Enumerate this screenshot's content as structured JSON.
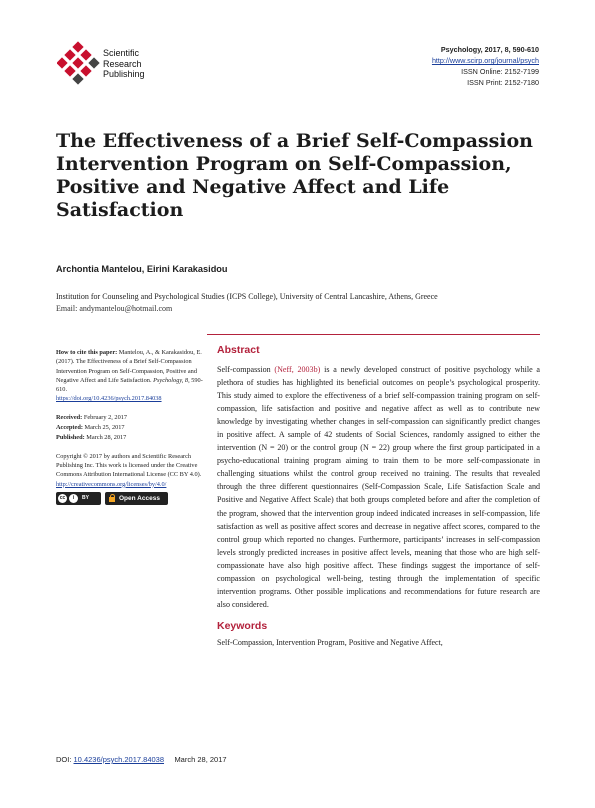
{
  "publisher": {
    "name_lines": [
      "Scientific",
      "Research",
      "Publishing"
    ],
    "brand_color": "#c8102e"
  },
  "journal": {
    "citation": "Psychology, 2017, 8, 590-610",
    "url": "http://www.scirp.org/journal/psych",
    "issn_online": "ISSN Online: 2152-7199",
    "issn_print": "ISSN Print: 2152-7180"
  },
  "article": {
    "title": "The Effectiveness of a Brief Self-Compassion Intervention Program on Self-Compassion, Positive and Negative Affect and Life Satisfaction",
    "authors": "Archontia Mantelou, Eirini Karakasidou",
    "affiliation": "Institution for Counseling and Psychological Studies (ICPS College), University of Central Lancashire, Athens, Greece",
    "email": "Email: andymantelou@hotmail.com"
  },
  "sidebar": {
    "how_to_cite_label": "How to cite this paper:",
    "how_to_cite_text": "Mantelou, A., & Karakasidou, E. (2017). The Effectiveness of a Brief Self-Compassion Intervention Program on Self-Compassion, Positive and Negative Affect and Life Satisfaction.",
    "how_to_cite_journal": "Psychology, 8,",
    "how_to_cite_pages": "590-610.",
    "doi_link": "https://doi.org/10.4236/psych.2017.84038",
    "received_label": "Received:",
    "received_date": "February 2, 2017",
    "accepted_label": "Accepted:",
    "accepted_date": "March 25, 2017",
    "published_label": "Published:",
    "published_date": "March 28, 2017",
    "copyright": "Copyright © 2017 by authors and Scientific Research Publishing Inc. This work is licensed under the Creative Commons Attribution International License (CC BY 4.0).",
    "license_link": "http://creativecommons.org/licenses/by/4.0/",
    "cc_icon_1": "cc",
    "cc_icon_2": "i",
    "cc_badge_label": "BY",
    "open_access_label": "Open Access"
  },
  "abstract": {
    "heading": "Abstract",
    "lead": "Self-compassion",
    "cite": "(Neff, 2003b)",
    "body": "is a newly developed construct of positive psychology while a plethora of studies has highlighted its beneficial outcomes on people’s psychological prosperity. This study aimed to explore the effectiveness of a brief self-compassion training program on self-compassion, life satisfaction and positive and negative affect as well as to contribute new knowledge by investigating whether changes in self-compassion can significantly predict changes in positive affect. A sample of 42 students of Social Sciences, randomly assigned to either the intervention (N = 20) or the control group (N = 22) group where the first group participated in a psycho-educational training program aiming to train them to be more self-compassionate in challenging situations whilst the control group received no training. The results that revealed through the three different questionnaires (Self-Compassion Scale, Life Satisfaction Scale and Positive and Negative Affect Scale) that both groups completed before and after the completion of the program, showed that the intervention group indeed indicated increases in self-compassion, life satisfaction as well as positive affect scores and decrease in negative affect scores, compared to the control group which reported no changes. Furthermore, participants’ increases in self-compassion levels strongly predicted increases in positive affect levels, meaning that those who are high self-compassionate have also high positive affect. These findings suggest the importance of self-compassion on psychological well-being, testing through the implementation of specific intervention programs. Other possible implications and recommendations for future research are also considered."
  },
  "keywords": {
    "heading": "Keywords",
    "text": "Self-Compassion, Intervention Program, Positive and Negative Affect,"
  },
  "footer": {
    "doi_label": "DOI:",
    "doi": "10.4236/psych.2017.84038",
    "date": "March 28, 2017"
  },
  "colors": {
    "accent": "#b3223c",
    "link": "#1a3e9a"
  }
}
